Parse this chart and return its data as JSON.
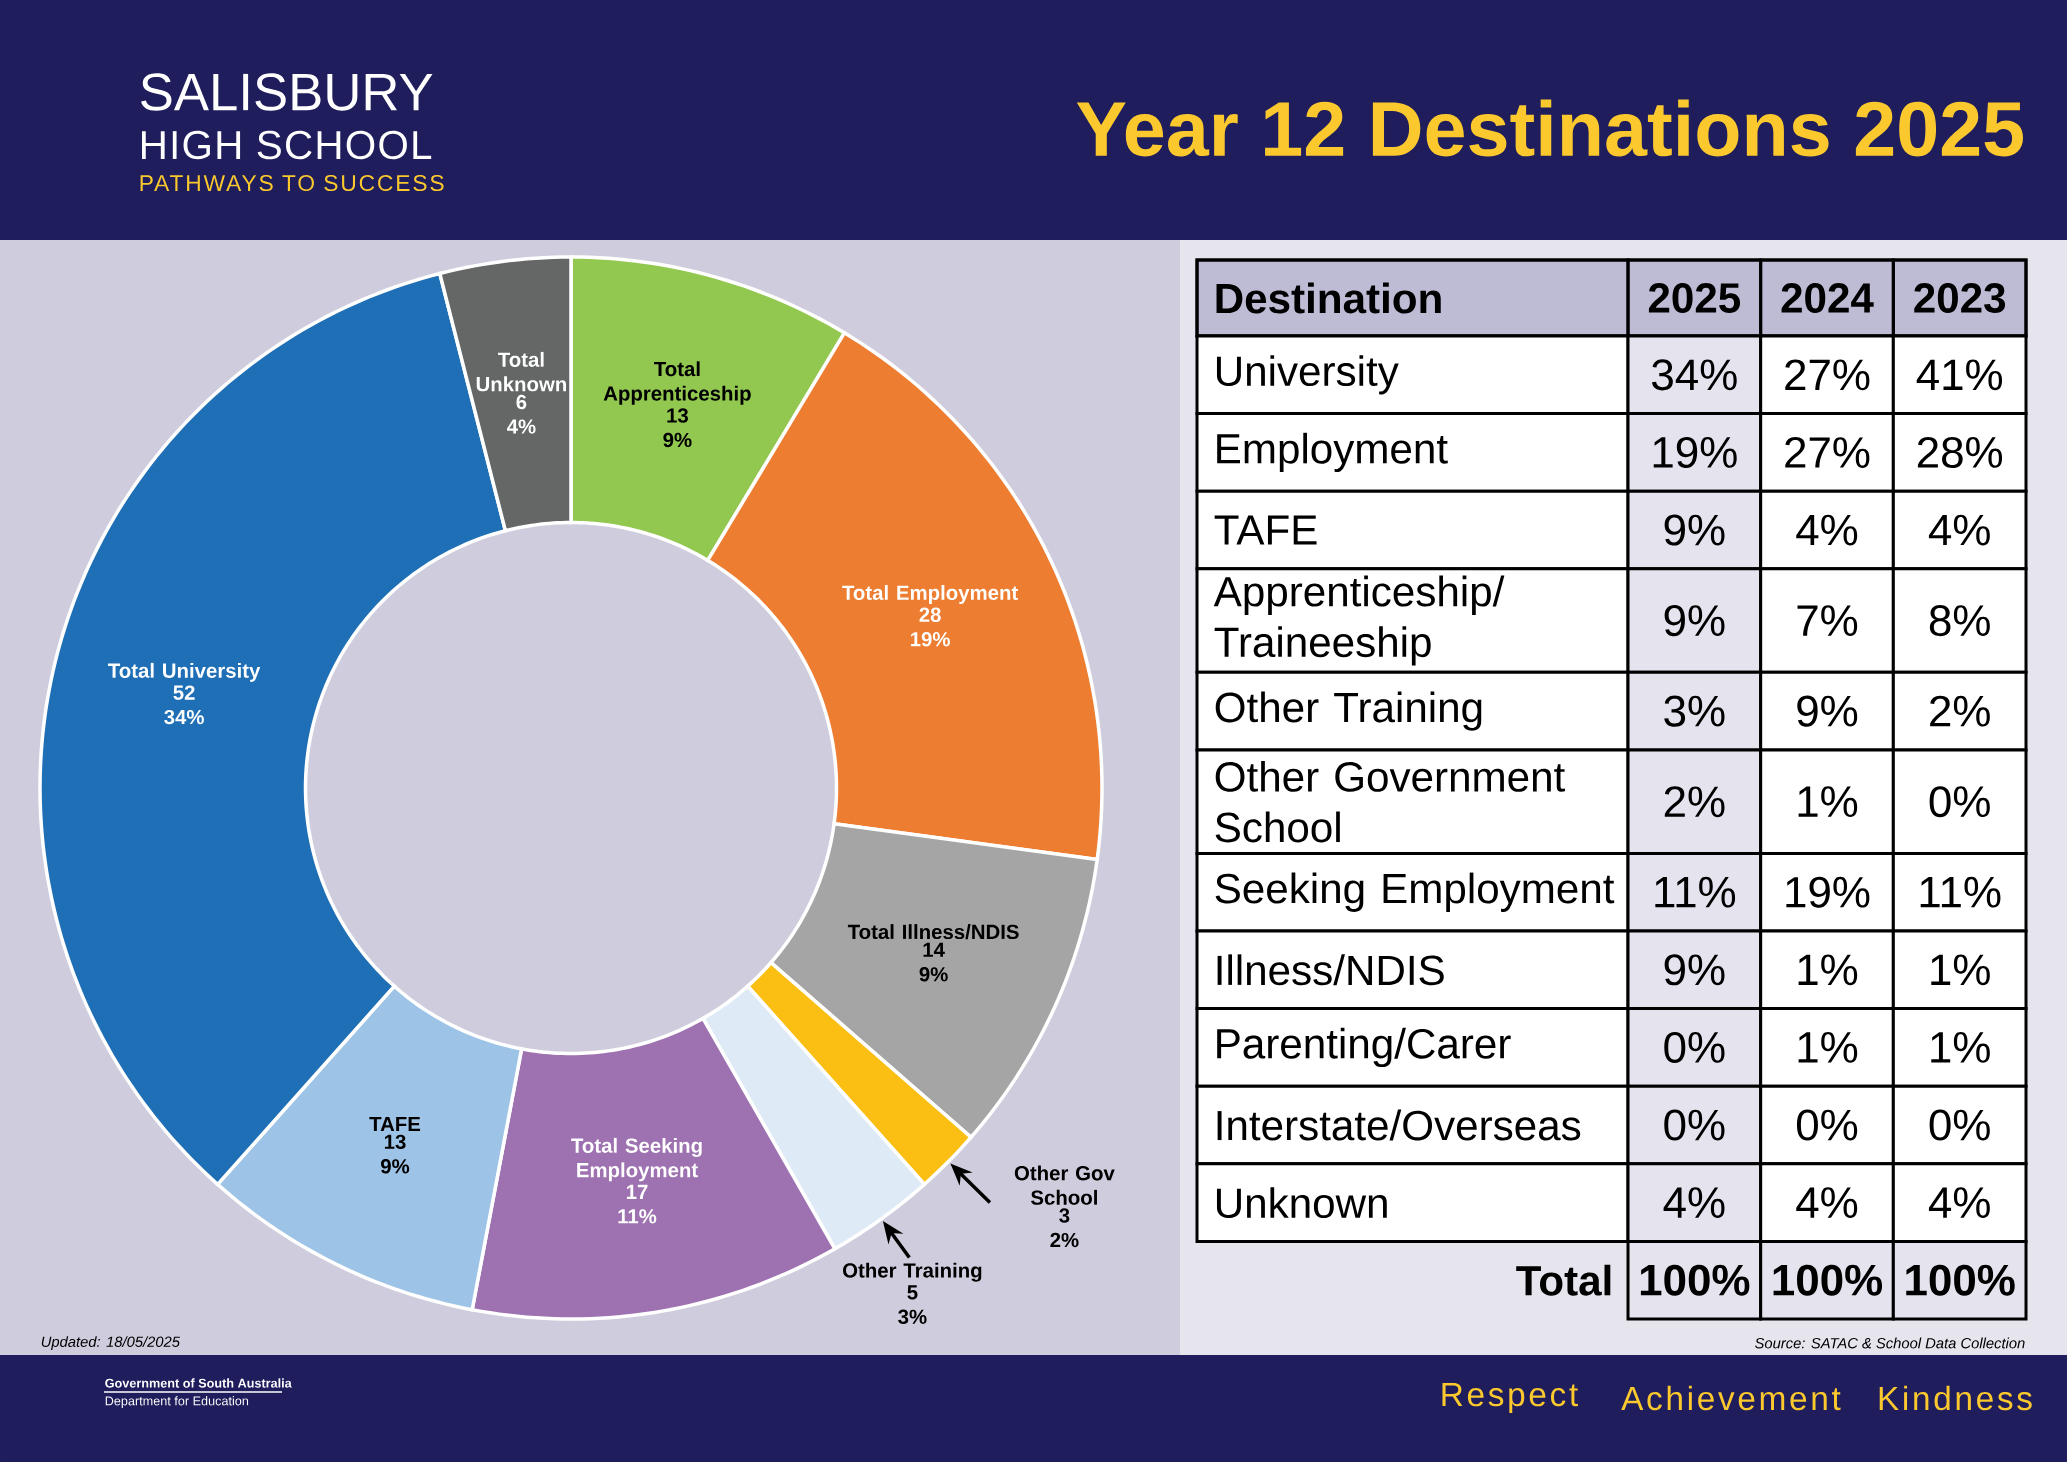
{
  "chart_data": [
    {
      "type": "donut",
      "categories": [
        "Total Apprenticeship",
        "Total Employment",
        "Total Illness/NDIS",
        "Other Gov School",
        "Other Training",
        "Total Seeking Employment",
        "TAFE",
        "Total University",
        "Total Unknown"
      ],
      "values": [
        13,
        28,
        14,
        3,
        5,
        17,
        13,
        52,
        6
      ],
      "colors": [
        "#92c850",
        "#ed7d31",
        "#a5a5a5",
        "#fbbf13",
        "#deebf7",
        "#9e72b0",
        "#9dc3e6",
        "#1f6fb6",
        "#656767"
      ],
      "value_labels": [
        "13 9%",
        "28 19%",
        "14 9%",
        "3 2%",
        "5 3%",
        "17 11%",
        "13 9%",
        "52 34%",
        "6 4%"
      ],
      "annotations": [
        "SALISBURY",
        "HIGH SCHOOL",
        "PATHWAYS TO SUCCESS",
        "Updated: 18/05/2025",
        "Government of South Australia",
        "Department for Education",
        "Respect",
        "Achievement",
        "Kindness"
      ]
    },
    {
      "type": "other",
      "title": "Year 12 Destinations 2025",
      "ylabel": "Destination",
      "categories": [
        "2025",
        "2024",
        "2023"
      ],
      "y_categories": [
        "University",
        "Employment",
        "TAFE",
        "Apprenticeship/ Traineeship",
        "Other Training",
        "Other Government School",
        "Seeking Employment",
        "Illness/NDIS",
        "Parenting/Carer",
        "Interstate/Overseas",
        "Unknown",
        "Total"
      ],
      "cell_labels": [
        [
          "34%",
          "27%",
          "41%"
        ],
        [
          "19%",
          "27%",
          "28%"
        ],
        [
          "9%",
          "4%",
          "4%"
        ],
        [
          "9%",
          "7%",
          "8%"
        ],
        [
          "3%",
          "9%",
          "2%"
        ],
        [
          "2%",
          "1%",
          "0%"
        ],
        [
          "11%",
          "19%",
          "11%"
        ],
        [
          "9%",
          "1%",
          "1%"
        ],
        [
          "0%",
          "1%",
          "1%"
        ],
        [
          "0%",
          "0%",
          "0%"
        ],
        [
          "4%",
          "4%",
          "4%"
        ],
        [
          "100%",
          "100%",
          "100%"
        ]
      ],
      "annotations": [
        "Source: SATAC & School Data Collection"
      ]
    }
  ]
}
